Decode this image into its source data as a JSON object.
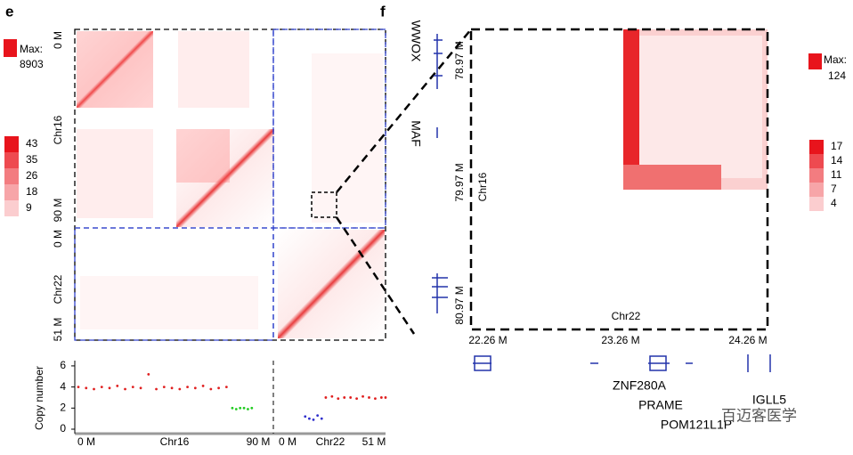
{
  "panel_e": {
    "label": "e",
    "legend": {
      "max_label": "Max:",
      "max_value": "8903",
      "scale": [
        "43",
        "35",
        "26",
        "18",
        "9"
      ]
    },
    "axis": {
      "chr16_start": "0 M",
      "chr16_name": "Chr16",
      "chr16_end": "90 M",
      "chr22_start": "0 M",
      "chr22_name": "Chr22",
      "chr22_end": "51 M"
    },
    "copy_number": {
      "ylabel": "Copy number",
      "ylim": [
        0,
        6.5
      ],
      "yticks": [
        0,
        2,
        4,
        6
      ],
      "chr16": {
        "xlim": [
          0,
          90
        ],
        "series": [
          {
            "color": "#e02020",
            "x": [
              0,
              4,
              8,
              12,
              16,
              20,
              24,
              28,
              32,
              36,
              40,
              44,
              48,
              52,
              56,
              60,
              64,
              68,
              72,
              76
            ],
            "values": [
              4,
              3.9,
              3.8,
              4,
              3.9,
              4.1,
              3.8,
              4,
              3.9,
              5.2,
              3.8,
              4,
              3.9,
              3.8,
              4,
              3.9,
              4.1,
              3.8,
              3.9,
              4
            ]
          },
          {
            "color": "#22cc22",
            "x": [
              79,
              81,
              83,
              85,
              87,
              89
            ],
            "values": [
              2,
              1.9,
              2,
              2,
              1.9,
              2
            ]
          }
        ]
      },
      "chr22": {
        "xlim": [
          0,
          51
        ],
        "series": [
          {
            "color": "#3030cc",
            "x": [
              12,
              14,
              16,
              18,
              20
            ],
            "values": [
              1.2,
              1,
              0.9,
              1.3,
              1
            ]
          },
          {
            "color": "#e02020",
            "x": [
              22,
              25,
              28,
              31,
              34,
              37,
              40,
              43,
              46,
              49,
              51
            ],
            "values": [
              3,
              3.1,
              2.9,
              3,
              3,
              2.9,
              3.1,
              3,
              2.9,
              3,
              3
            ]
          }
        ]
      }
    }
  },
  "panel_f": {
    "label": "f",
    "legend": {
      "max_label": "Max:",
      "max_value": "124",
      "scale": [
        "17",
        "14",
        "11",
        "7",
        "4"
      ]
    },
    "genes_left": [
      "WWOX",
      "MAF"
    ],
    "y_axis": {
      "ticks": [
        "78.97 M",
        "79.97 M",
        "80.97 M"
      ],
      "name": "Chr16"
    },
    "x_axis": {
      "ticks": [
        "22.26 M",
        "23.26 M",
        "24.26 M"
      ],
      "name": "Chr22"
    },
    "genes_bottom": [
      "ZNF280A",
      "PRAME",
      "POM121L1P",
      "IGLL5"
    ]
  },
  "watermark": "百迈客医学"
}
